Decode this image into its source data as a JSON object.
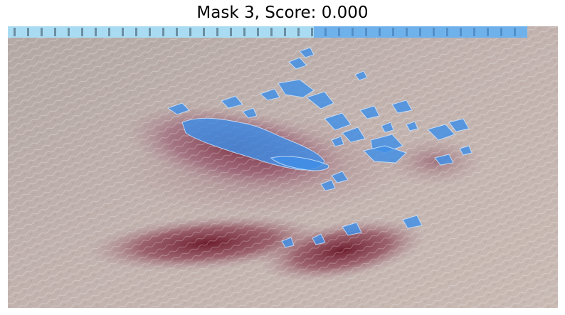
{
  "title": "Mask 3, Score: 0.000",
  "image": {
    "description_icon": "skin-lesion-photo",
    "colors": {
      "skin": "#b7a9a6",
      "bruise_dark": "#6e1d2c",
      "bruise_mid": "#8e4a5a",
      "mask": "#3f8fe6",
      "ruler": "#a9dcf2"
    }
  }
}
